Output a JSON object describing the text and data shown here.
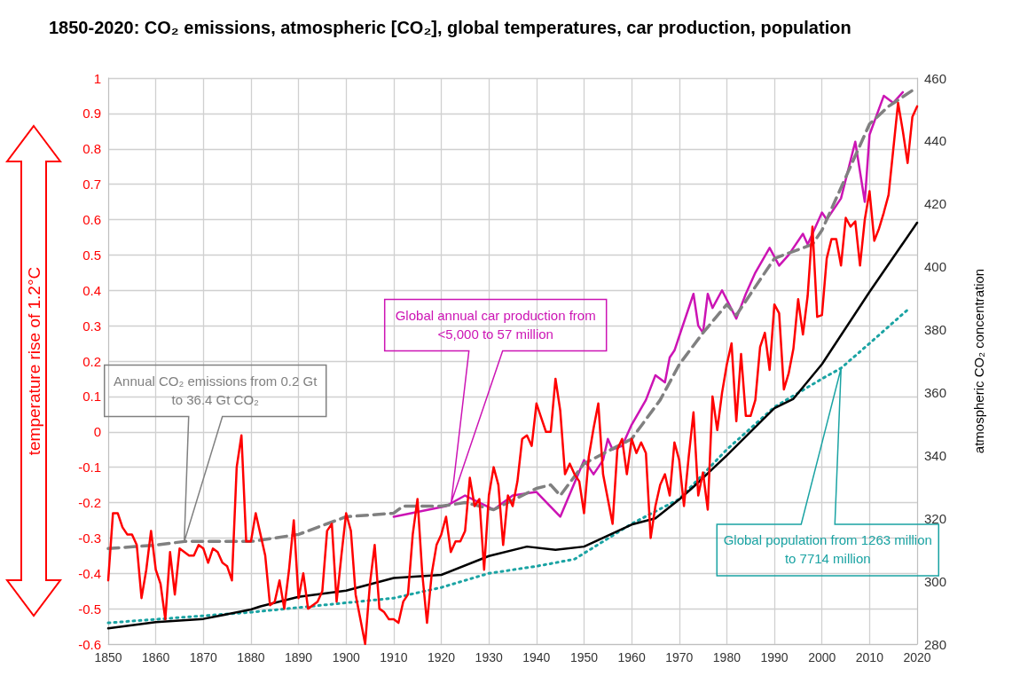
{
  "chart_data": {
    "type": "line",
    "title": "1850-2020: CO₂ emissions, atmospheric [CO₂], global temperatures, car production, population",
    "ylabel": "temperature rise of 1.2°C",
    "y2label": "atmospheric CO₂ concentration",
    "xlim": [
      1850,
      2020
    ],
    "xticks": [
      1850,
      1860,
      1870,
      1880,
      1890,
      1900,
      1910,
      1920,
      1930,
      1940,
      1950,
      1960,
      1970,
      1980,
      1990,
      2000,
      2010,
      2020
    ],
    "ylim": [
      -0.6,
      1
    ],
    "yticks": [
      -0.6,
      -0.5,
      -0.4,
      -0.3,
      -0.2,
      -0.1,
      0,
      0.1,
      0.2,
      0.3,
      0.4,
      0.5,
      0.6,
      0.7,
      0.8,
      0.9,
      1
    ],
    "y2lim": [
      280,
      460
    ],
    "y2ticks": [
      280,
      300,
      320,
      340,
      360,
      380,
      400,
      420,
      440,
      460
    ],
    "grid": true,
    "marker": "none",
    "x": [
      1850,
      1851,
      1852,
      1853,
      1854,
      1855,
      1856,
      1857,
      1858,
      1859,
      1860,
      1861,
      1862,
      1863,
      1864,
      1865,
      1866,
      1867,
      1868,
      1869,
      1870,
      1871,
      1872,
      1873,
      1874,
      1875,
      1876,
      1877,
      1878,
      1879,
      1880,
      1881,
      1882,
      1883,
      1884,
      1885,
      1886,
      1887,
      1888,
      1889,
      1890,
      1891,
      1892,
      1893,
      1894,
      1895,
      1896,
      1897,
      1898,
      1899,
      1900,
      1901,
      1902,
      1903,
      1904,
      1905,
      1906,
      1907,
      1908,
      1909,
      1910,
      1911,
      1912,
      1913,
      1914,
      1915,
      1916,
      1917,
      1918,
      1919,
      1920,
      1921,
      1922,
      1923,
      1924,
      1925,
      1926,
      1927,
      1928,
      1929,
      1930,
      1931,
      1932,
      1933,
      1934,
      1935,
      1936,
      1937,
      1938,
      1939,
      1940,
      1941,
      1942,
      1943,
      1944,
      1945,
      1946,
      1947,
      1948,
      1949,
      1950,
      1951,
      1952,
      1953,
      1954,
      1955,
      1956,
      1957,
      1958,
      1959,
      1960,
      1961,
      1962,
      1963,
      1964,
      1965,
      1966,
      1967,
      1968,
      1969,
      1970,
      1971,
      1972,
      1973,
      1974,
      1975,
      1976,
      1977,
      1978,
      1979,
      1980,
      1981,
      1982,
      1983,
      1984,
      1985,
      1986,
      1987,
      1988,
      1989,
      1990,
      1991,
      1992,
      1993,
      1994,
      1995,
      1996,
      1997,
      1998,
      1999,
      2000,
      2001,
      2002,
      2003,
      2004,
      2005,
      2006,
      2007,
      2008,
      2009,
      2010,
      2011,
      2012,
      2013,
      2014,
      2015,
      2016,
      2017,
      2018,
      2019,
      2020
    ],
    "series": [
      {
        "color": "#ff0000",
        "line_style": "solid",
        "values": [
          -0.42,
          -0.23,
          -0.23,
          -0.27,
          -0.29,
          -0.29,
          -0.32,
          -0.47,
          -0.39,
          -0.28,
          -0.39,
          -0.43,
          -0.53,
          -0.34,
          -0.46,
          -0.33,
          -0.34,
          -0.35,
          -0.35,
          -0.32,
          -0.33,
          -0.37,
          -0.33,
          -0.34,
          -0.37,
          -0.38,
          -0.42,
          -0.1,
          -0.01,
          -0.31,
          -0.31,
          -0.23,
          -0.29,
          -0.35,
          -0.49,
          -0.48,
          -0.42,
          -0.5,
          -0.39,
          -0.25,
          -0.47,
          -0.4,
          -0.5,
          -0.49,
          -0.48,
          -0.45,
          -0.28,
          -0.26,
          -0.48,
          -0.35,
          -0.23,
          -0.28,
          -0.46,
          -0.53,
          -0.6,
          -0.43,
          -0.32,
          -0.5,
          -0.51,
          -0.53,
          -0.53,
          -0.54,
          -0.48,
          -0.46,
          -0.29,
          -0.19,
          -0.4,
          -0.54,
          -0.4,
          -0.32,
          -0.29,
          -0.24,
          -0.34,
          -0.31,
          -0.31,
          -0.28,
          -0.13,
          -0.21,
          -0.19,
          -0.39,
          -0.18,
          -0.1,
          -0.15,
          -0.32,
          -0.18,
          -0.21,
          -0.14,
          -0.02,
          -0.01,
          -0.04,
          0.08,
          0.04,
          0.0,
          0.0,
          0.15,
          0.06,
          -0.12,
          -0.09,
          -0.12,
          -0.14,
          -0.23,
          -0.07,
          0.01,
          0.08,
          -0.12,
          -0.19,
          -0.26,
          -0.05,
          -0.02,
          -0.12,
          -0.02,
          -0.06,
          -0.03,
          -0.06,
          -0.3,
          -0.21,
          -0.15,
          -0.12,
          -0.18,
          -0.03,
          -0.08,
          -0.21,
          -0.07,
          0.055,
          -0.18,
          -0.115,
          -0.22,
          0.1,
          0.005,
          0.11,
          0.19,
          0.25,
          0.03,
          0.22,
          0.045,
          0.045,
          0.09,
          0.24,
          0.28,
          0.175,
          0.36,
          0.335,
          0.12,
          0.165,
          0.235,
          0.375,
          0.275,
          0.385,
          0.58,
          0.325,
          0.33,
          0.49,
          0.545,
          0.545,
          0.47,
          0.605,
          0.58,
          0.595,
          0.47,
          0.6,
          0.68,
          0.54,
          0.575,
          0.62,
          0.67,
          0.8,
          0.93,
          0.85,
          0.76,
          0.89,
          0.92
        ]
      },
      {
        "color": "#000000",
        "line_style": "solid",
        "axis": "y2",
        "x": [
          1850,
          1860,
          1870,
          1880,
          1882,
          1890,
          1900,
          1910,
          1920,
          1930,
          1938,
          1944,
          1950,
          1960,
          1965,
          1970,
          1973,
          1980,
          1990,
          1994,
          2000,
          2010,
          2020
        ],
        "values": [
          285,
          287,
          288,
          291,
          292,
          295,
          297,
          301,
          302,
          308,
          311,
          310,
          311,
          318,
          320,
          326,
          330,
          340,
          355,
          358,
          369,
          392,
          414
        ]
      },
      {
        "color": "#808080",
        "line_style": "dashed",
        "x": [
          1850,
          1860,
          1866,
          1880,
          1890,
          1900,
          1910,
          1912,
          1920,
          1925,
          1931,
          1940,
          1943,
          1945,
          1950,
          1960,
          1966,
          1970,
          1975,
          1980,
          1982,
          1990,
          1998,
          2000,
          2006,
          2010,
          2014,
          2019
        ],
        "values": [
          -0.33,
          -0.32,
          -0.31,
          -0.31,
          -0.29,
          -0.24,
          -0.23,
          -0.21,
          -0.21,
          -0.2,
          -0.22,
          -0.16,
          -0.15,
          -0.18,
          -0.09,
          -0.02,
          0.09,
          0.19,
          0.28,
          0.36,
          0.33,
          0.49,
          0.53,
          0.57,
          0.75,
          0.87,
          0.92,
          0.965
        ]
      },
      {
        "color": "#cc14b4",
        "line_style": "solid",
        "x": [
          1910,
          1921,
          1925,
          1931,
          1935,
          1940,
          1945,
          1950,
          1952,
          1954,
          1955,
          1956,
          1958,
          1960,
          1963,
          1965,
          1967,
          1968,
          1969,
          1971,
          1973,
          1974,
          1975,
          1976,
          1977,
          1979,
          1982,
          1984,
          1986,
          1989,
          1991,
          1993,
          1996,
          1997,
          2000,
          2001,
          2004,
          2007,
          2009,
          2010,
          2013,
          2015,
          2017
        ],
        "values": [
          -0.24,
          -0.21,
          -0.18,
          -0.22,
          -0.18,
          -0.17,
          -0.24,
          -0.08,
          -0.12,
          -0.08,
          -0.02,
          -0.05,
          -0.04,
          0.02,
          0.09,
          0.16,
          0.14,
          0.21,
          0.23,
          0.31,
          0.39,
          0.3,
          0.28,
          0.39,
          0.35,
          0.4,
          0.32,
          0.39,
          0.45,
          0.52,
          0.47,
          0.5,
          0.56,
          0.53,
          0.62,
          0.6,
          0.66,
          0.82,
          0.65,
          0.84,
          0.95,
          0.93,
          0.96
        ]
      },
      {
        "color": "#1aa3a3",
        "line_style": "dotted",
        "x": [
          1850,
          1880,
          1910,
          1920,
          1930,
          1940,
          1948,
          1960,
          1970,
          1980,
          1990,
          2000,
          2004,
          2010,
          2018
        ],
        "values": [
          -0.54,
          -0.51,
          -0.47,
          -0.44,
          -0.4,
          -0.38,
          -0.36,
          -0.26,
          -0.19,
          -0.05,
          0.07,
          0.15,
          0.18,
          0.25,
          0.345
        ]
      }
    ],
    "annotations": [
      "Annual CO₂ emissions from 0.2 Gt to 36.4 Gt CO₂",
      "Global annual car production from <5,000 to 57 million",
      "Global population from 1263 million to 7714 million"
    ]
  }
}
